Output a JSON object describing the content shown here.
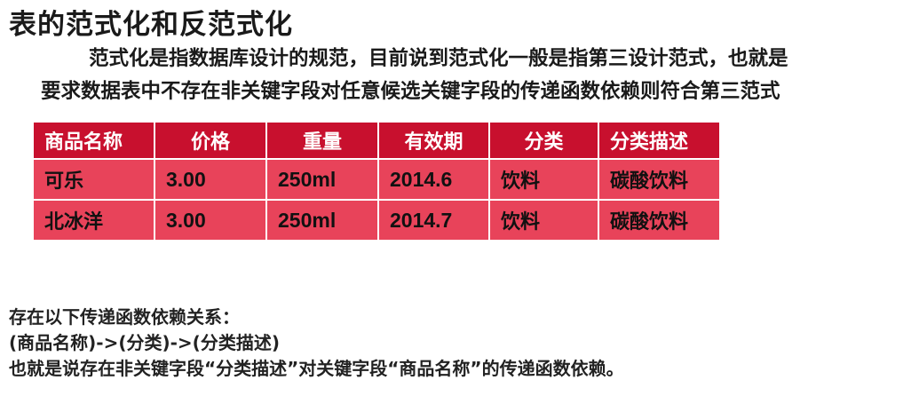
{
  "title": "表的范式化和反范式化",
  "paragraph": {
    "line1": "范式化是指数据库设计的规范，目前说到范式化一般是指第三设计范式，也就是",
    "line2": "要求数据表中不存在非关键字段对任意候选关键字段的传递函数依赖则符合第三范式"
  },
  "table": {
    "headers": [
      "商品名称",
      "价格",
      "重量",
      "有效期",
      "分类",
      "分类描述"
    ],
    "rows": [
      [
        "可乐",
        "3.00",
        "250ml",
        "2014.6",
        "饮料",
        "碳酸饮料"
      ],
      [
        "北冰洋",
        "3.00",
        "250ml",
        "2014.7",
        "饮料",
        "碳酸饮料"
      ]
    ],
    "colors": {
      "header_bg": "#c8102e",
      "cell_bg": "#e8435a",
      "header_text": "#ffffff"
    }
  },
  "notes": {
    "line1": "存在以下传递函数依赖关系：",
    "line2": "(商品名称)->(分类)->(分类描述)",
    "line3": "也就是说存在非关键字段“分类描述”对关键字段“商品名称”的传递函数依赖。"
  }
}
